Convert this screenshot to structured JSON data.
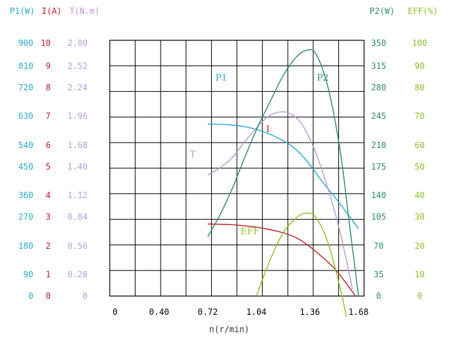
{
  "chart_data": {
    "type": "line",
    "xlabel": "n(r/min)",
    "x_ticks": [
      "0",
      "0.40",
      "0.72",
      "1.04",
      "1.36",
      "1.68"
    ],
    "axes": {
      "p1": {
        "header": "P1(W)",
        "ticks": [
          "0",
          "90",
          "180",
          "270",
          "360",
          "450",
          "540",
          "630",
          "720",
          "810",
          "900"
        ],
        "color": "#2aa9d4"
      },
      "i": {
        "header": "I(A)",
        "ticks": [
          "0",
          "1",
          "2",
          "3",
          "4",
          "5",
          "6",
          "7",
          "8",
          "9",
          "10"
        ],
        "color": "#c0202a"
      },
      "t": {
        "header": "T(N.m)",
        "ticks": [
          "0",
          "0.28",
          "0.56",
          "0.84",
          "1.12",
          "1.40",
          "1.68",
          "1.96",
          "2.24",
          "2.52",
          "2.80"
        ],
        "color": "#b89ad8"
      },
      "p2": {
        "header": "P2(W)",
        "ticks": [
          "0",
          "35",
          "70",
          "105",
          "140",
          "175",
          "210",
          "245",
          "280",
          "315",
          "350"
        ],
        "color": "#2e8b6e"
      },
      "eff": {
        "header": "EFF(%)",
        "ticks": [
          "0",
          "10",
          "20",
          "30",
          "40",
          "50",
          "60",
          "70",
          "80",
          "90",
          "100"
        ],
        "color": "#8cbf26"
      }
    },
    "series": [
      {
        "name": "P1",
        "color": "#2aa9d4",
        "points": [
          [
            0.72,
            612
          ],
          [
            0.84,
            610
          ],
          [
            0.96,
            603
          ],
          [
            1.08,
            585
          ],
          [
            1.2,
            553
          ],
          [
            1.28,
            520
          ],
          [
            1.36,
            467
          ],
          [
            1.44,
            408
          ],
          [
            1.52,
            355
          ],
          [
            1.6,
            298
          ],
          [
            1.68,
            240
          ]
        ]
      },
      {
        "name": "I",
        "color": "#c0202a",
        "points": [
          [
            0.72,
            2.85
          ],
          [
            0.84,
            2.83
          ],
          [
            0.96,
            2.78
          ],
          [
            1.08,
            2.68
          ],
          [
            1.2,
            2.5
          ],
          [
            1.28,
            2.3
          ],
          [
            1.36,
            1.95
          ],
          [
            1.44,
            1.55
          ],
          [
            1.52,
            1.1
          ],
          [
            1.6,
            0.5
          ],
          [
            1.66,
            0.0
          ]
        ]
      },
      {
        "name": "T",
        "color": "#b89ad8",
        "points": [
          [
            0.72,
            1.34
          ],
          [
            0.8,
            1.42
          ],
          [
            0.88,
            1.53
          ],
          [
            0.96,
            1.7
          ],
          [
            1.04,
            1.86
          ],
          [
            1.12,
            2.0
          ],
          [
            1.2,
            2.04
          ],
          [
            1.26,
            2.0
          ],
          [
            1.32,
            1.88
          ],
          [
            1.4,
            1.58
          ],
          [
            1.48,
            1.18
          ],
          [
            1.56,
            0.7
          ],
          [
            1.64,
            0.08
          ]
        ]
      },
      {
        "name": "P2",
        "color": "#2e8b6e",
        "points": [
          [
            0.72,
            82
          ],
          [
            0.8,
            112
          ],
          [
            0.88,
            148
          ],
          [
            0.96,
            190
          ],
          [
            1.04,
            230
          ],
          [
            1.12,
            268
          ],
          [
            1.2,
            305
          ],
          [
            1.28,
            331
          ],
          [
            1.34,
            340
          ],
          [
            1.4,
            335
          ],
          [
            1.48,
            288
          ],
          [
            1.56,
            200
          ],
          [
            1.62,
            100
          ],
          [
            1.68,
            0
          ]
        ]
      },
      {
        "name": "EFF",
        "color": "#8cbf26",
        "points": [
          [
            1.04,
            0
          ],
          [
            1.12,
            14
          ],
          [
            1.2,
            25
          ],
          [
            1.28,
            31
          ],
          [
            1.34,
            32.8
          ],
          [
            1.4,
            31
          ],
          [
            1.48,
            21
          ],
          [
            1.56,
            3
          ],
          [
            1.6,
            -8
          ]
        ]
      }
    ]
  }
}
